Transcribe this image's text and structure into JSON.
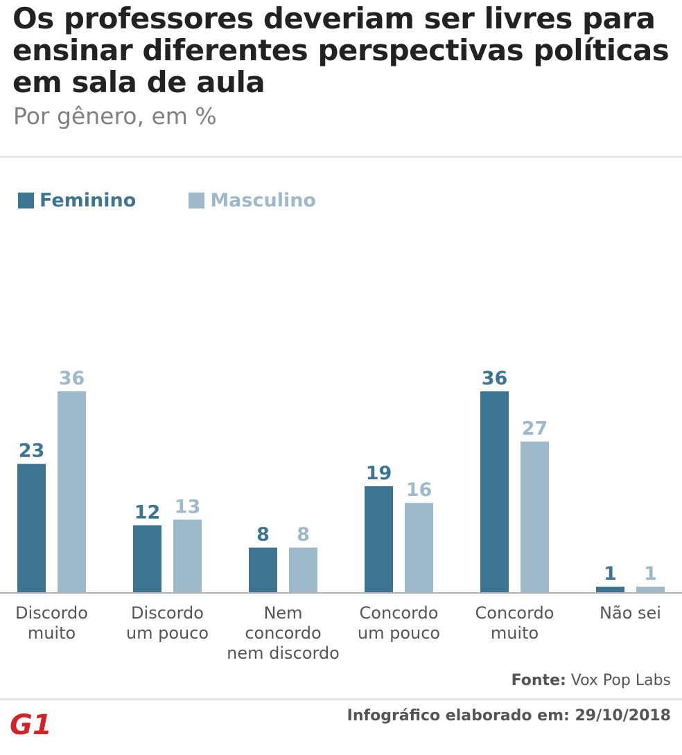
{
  "header": {
    "title": "Os professores deveriam ser livres para ensinar diferentes perspectivas políticas em sala de aula",
    "subtitle": "Por gênero, em %"
  },
  "colors": {
    "feminino": "#3d7491",
    "masculino": "#9eb9c9",
    "baseline": "#b3b3b3",
    "logo": "#d1232a"
  },
  "chart_data": {
    "type": "bar",
    "title": "Os professores deveriam ser livres para ensinar diferentes perspectivas políticas em sala de aula",
    "subtitle": "Por gênero, em %",
    "categories": [
      [
        "Discordo",
        "muito"
      ],
      [
        "Discordo",
        "um pouco"
      ],
      [
        "Nem",
        "concordo",
        "nem discordo"
      ],
      [
        "Concordo",
        "um pouco"
      ],
      [
        "Concordo",
        "muito"
      ],
      [
        "Não sei"
      ]
    ],
    "series": [
      {
        "name": "Feminino",
        "values": [
          23,
          12,
          8,
          19,
          36,
          1
        ]
      },
      {
        "name": "Masculino",
        "values": [
          36,
          13,
          8,
          16,
          27,
          1
        ]
      }
    ],
    "ylim": [
      0,
      36
    ],
    "xlabel": "",
    "ylabel": "",
    "legend": "top-left",
    "grid": false
  },
  "footer": {
    "source_label": "Fonte:",
    "source_value": "Vox Pop Labs",
    "credit": "Infográfico elaborado em: 29/10/2018",
    "logo_text": "G1"
  }
}
